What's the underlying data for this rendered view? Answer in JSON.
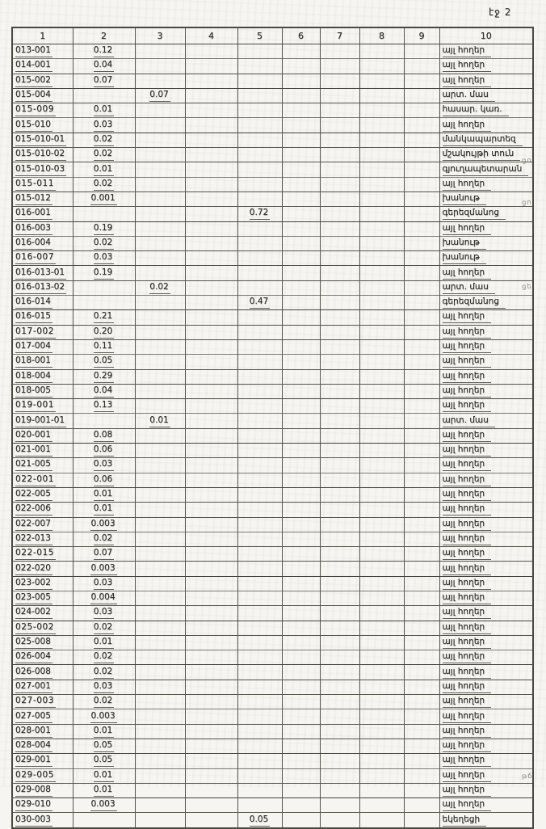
{
  "page": {
    "page_label": "էջ 2"
  },
  "colors": {
    "paper": "#f6f5f1",
    "ink": "#2b2a26",
    "line": "#56534b"
  },
  "table": {
    "headers": [
      "1",
      "2",
      "3",
      "4",
      "5",
      "6",
      "7",
      "8",
      "9",
      "10"
    ],
    "rows": [
      {
        "code": "013-001",
        "c2": "0.12",
        "c3": "",
        "c5": "",
        "c10": "այլ հողեր"
      },
      {
        "code": "014-001",
        "c2": "0.04",
        "c3": "",
        "c5": "",
        "c10": "այլ հողեր"
      },
      {
        "code": "015-002",
        "c2": "0.07",
        "c3": "",
        "c5": "",
        "c10": "այլ հողեր"
      },
      {
        "code": "015-004",
        "c2": "",
        "c3": "0.07",
        "c5": "",
        "c10": "արտ. մաս"
      },
      {
        "code": "015-009",
        "c2": "0.01",
        "c3": "",
        "c5": "",
        "c10": "հասար. կառ."
      },
      {
        "code": "015-010",
        "c2": "0.03",
        "c3": "",
        "c5": "",
        "c10": "այլ հողեր"
      },
      {
        "code": "015-010-01",
        "c2": "0.02",
        "c3": "",
        "c5": "",
        "c10": "մանկապարտեզ"
      },
      {
        "code": "015-010-02",
        "c2": "0.02",
        "c3": "",
        "c5": "",
        "c10": "մշակույթի տուն"
      },
      {
        "code": "015-010-03",
        "c2": "0.01",
        "c3": "",
        "c5": "",
        "c10": "գյուղապետարան"
      },
      {
        "code": "015-011",
        "c2": "0.02",
        "c3": "",
        "c5": "",
        "c10": "այլ հողեր"
      },
      {
        "code": "015-012",
        "c2": "0.001",
        "c3": "",
        "c5": "",
        "c10": "խանութ"
      },
      {
        "code": "016-001",
        "c2": "",
        "c3": "",
        "c5": "0.72",
        "c10": "գերեզմանոց"
      },
      {
        "code": "016-003",
        "c2": "0.19",
        "c3": "",
        "c5": "",
        "c10": "այլ հողեր"
      },
      {
        "code": "016-004",
        "c2": "0.02",
        "c3": "",
        "c5": "",
        "c10": "խանութ"
      },
      {
        "code": "016-007",
        "c2": "0.03",
        "c3": "",
        "c5": "",
        "c10": "խանութ"
      },
      {
        "code": "016-013-01",
        "c2": "0.19",
        "c3": "",
        "c5": "",
        "c10": "այլ հողեր"
      },
      {
        "code": "016-013-02",
        "c2": "",
        "c3": "0.02",
        "c5": "",
        "c10": "արտ. մաս"
      },
      {
        "code": "016-014",
        "c2": "",
        "c3": "",
        "c5": "0.47",
        "c10": "գերեզմանոց"
      },
      {
        "code": "016-015",
        "c2": "0.21",
        "c3": "",
        "c5": "",
        "c10": "այլ հողեր"
      },
      {
        "code": "017-002",
        "c2": "0.20",
        "c3": "",
        "c5": "",
        "c10": "այլ հողեր"
      },
      {
        "code": "017-004",
        "c2": "0.11",
        "c3": "",
        "c5": "",
        "c10": "այլ հողեր"
      },
      {
        "code": "018-001",
        "c2": "0.05",
        "c3": "",
        "c5": "",
        "c10": "այլ հողեր"
      },
      {
        "code": "018-004",
        "c2": "0.29",
        "c3": "",
        "c5": "",
        "c10": "այլ հողեր"
      },
      {
        "code": "018-005",
        "c2": "0.04",
        "c3": "",
        "c5": "",
        "c10": "այլ հողեր"
      },
      {
        "code": "019-001",
        "c2": "0.13",
        "c3": "",
        "c5": "",
        "c10": "այլ հողեր"
      },
      {
        "code": "019-001-01",
        "c2": "",
        "c3": "0.01",
        "c5": "",
        "c10": "արտ. մաս"
      },
      {
        "code": "020-001",
        "c2": "0.08",
        "c3": "",
        "c5": "",
        "c10": "այլ հողեր"
      },
      {
        "code": "021-001",
        "c2": "0.06",
        "c3": "",
        "c5": "",
        "c10": "այլ հողեր"
      },
      {
        "code": "021-005",
        "c2": "0.03",
        "c3": "",
        "c5": "",
        "c10": "այլ հողեր"
      },
      {
        "code": "022-001",
        "c2": "0.06",
        "c3": "",
        "c5": "",
        "c10": "այլ հողեր"
      },
      {
        "code": "022-005",
        "c2": "0.01",
        "c3": "",
        "c5": "",
        "c10": "այլ հողեր"
      },
      {
        "code": "022-006",
        "c2": "0.01",
        "c3": "",
        "c5": "",
        "c10": "այլ հողեր"
      },
      {
        "code": "022-007",
        "c2": "0.003",
        "c3": "",
        "c5": "",
        "c10": "այլ հողեր"
      },
      {
        "code": "022-013",
        "c2": "0.02",
        "c3": "",
        "c5": "",
        "c10": "այլ հողեր"
      },
      {
        "code": "022-015",
        "c2": "0.07",
        "c3": "",
        "c5": "",
        "c10": "այլ հողեր"
      },
      {
        "code": "022-020",
        "c2": "0.003",
        "c3": "",
        "c5": "",
        "c10": "այլ հողեր"
      },
      {
        "code": "023-002",
        "c2": "0.03",
        "c3": "",
        "c5": "",
        "c10": "այլ հողեր"
      },
      {
        "code": "023-005",
        "c2": "0.004",
        "c3": "",
        "c5": "",
        "c10": "այլ հողեր"
      },
      {
        "code": "024-002",
        "c2": "0.03",
        "c3": "",
        "c5": "",
        "c10": "այլ հողեր"
      },
      {
        "code": "025-002",
        "c2": "0.02",
        "c3": "",
        "c5": "",
        "c10": "այլ հողեր"
      },
      {
        "code": "025-008",
        "c2": "0.01",
        "c3": "",
        "c5": "",
        "c10": "այլ հողեր"
      },
      {
        "code": "026-004",
        "c2": "0.02",
        "c3": "",
        "c5": "",
        "c10": "այլ հողեր"
      },
      {
        "code": "026-008",
        "c2": "0.02",
        "c3": "",
        "c5": "",
        "c10": "այլ հողեր"
      },
      {
        "code": "027-001",
        "c2": "0.03",
        "c3": "",
        "c5": "",
        "c10": "այլ հողեր"
      },
      {
        "code": "027-003",
        "c2": "0.02",
        "c3": "",
        "c5": "",
        "c10": "այլ հողեր"
      },
      {
        "code": "027-005",
        "c2": "0.003",
        "c3": "",
        "c5": "",
        "c10": "այլ հողեր"
      },
      {
        "code": "028-001",
        "c2": "0.01",
        "c3": "",
        "c5": "",
        "c10": "այլ հողեր"
      },
      {
        "code": "028-004",
        "c2": "0.05",
        "c3": "",
        "c5": "",
        "c10": "այլ հողեր"
      },
      {
        "code": "029-001",
        "c2": "0.05",
        "c3": "",
        "c5": "",
        "c10": "այլ հողեր"
      },
      {
        "code": "029-005",
        "c2": "0.01",
        "c3": "",
        "c5": "",
        "c10": "այլ հողեր"
      },
      {
        "code": "029-008",
        "c2": "0.01",
        "c3": "",
        "c5": "",
        "c10": "այլ հողեր"
      },
      {
        "code": "029-010",
        "c2": "0.003",
        "c3": "",
        "c5": "",
        "c10": "այլ հողեր"
      },
      {
        "code": "030-003",
        "c2": "",
        "c3": "",
        "c5": "0.05",
        "c10": "եկեղեցի"
      }
    ],
    "margin_marks": [
      {
        "row": 8,
        "text": "ցօ"
      },
      {
        "row": 11,
        "text": "ցո"
      },
      {
        "row": 17,
        "text": "ցե"
      },
      {
        "row": 52,
        "text": "թճ"
      }
    ]
  }
}
